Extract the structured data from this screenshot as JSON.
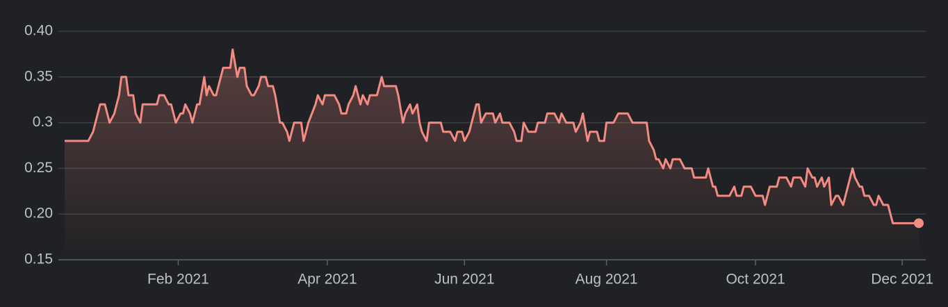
{
  "chart_data": {
    "type": "line",
    "x": [
      0,
      10,
      12,
      14,
      15,
      17,
      19,
      21,
      23,
      24,
      26,
      27,
      29,
      30,
      32,
      33,
      35,
      39,
      40,
      42,
      44,
      45,
      47,
      49,
      50,
      51,
      53,
      54,
      56,
      57,
      59,
      60,
      61,
      63,
      64,
      66,
      67,
      70,
      71,
      73,
      74,
      76,
      77,
      79,
      80,
      82,
      83,
      85,
      86,
      88,
      89,
      91,
      92,
      94,
      95,
      97,
      100,
      101,
      103,
      106,
      107,
      109,
      110,
      114,
      116,
      117,
      119,
      120,
      122,
      123,
      125,
      126,
      128,
      129,
      132,
      134,
      135,
      140,
      141,
      143,
      144,
      146,
      147,
      149,
      150,
      151,
      153,
      154,
      159,
      160,
      163,
      165,
      166,
      168,
      169,
      171,
      172,
      174,
      175,
      176,
      178,
      181,
      182,
      184,
      185,
      188,
      190,
      191,
      193,
      194,
      196,
      199,
      200,
      203,
      204,
      207,
      209,
      210,
      212,
      215,
      216,
      218,
      219,
      221,
      222,
      225,
      226,
      228,
      229,
      232,
      234,
      238,
      240,
      246,
      247,
      249,
      250,
      251,
      253,
      254,
      256,
      257,
      260,
      262,
      265,
      266,
      271,
      272,
      274,
      275,
      276,
      281,
      283,
      284,
      286,
      287,
      290,
      292,
      295,
      296,
      298,
      301,
      302,
      305,
      307,
      308,
      311,
      313,
      314,
      316,
      317,
      318,
      320,
      321,
      323,
      324,
      326,
      327,
      329,
      330,
      331,
      333,
      334,
      336,
      337,
      338,
      340,
      342,
      343,
      344,
      346,
      348,
      350,
      361
    ],
    "series": [
      {
        "color": "#f28b82",
        "values": [
          0.28,
          0.28,
          0.29,
          0.31,
          0.32,
          0.32,
          0.3,
          0.31,
          0.33,
          0.35,
          0.35,
          0.33,
          0.33,
          0.31,
          0.3,
          0.32,
          0.32,
          0.32,
          0.33,
          0.33,
          0.32,
          0.32,
          0.3,
          0.31,
          0.31,
          0.32,
          0.31,
          0.3,
          0.32,
          0.32,
          0.35,
          0.33,
          0.34,
          0.33,
          0.33,
          0.35,
          0.36,
          0.36,
          0.38,
          0.35,
          0.36,
          0.36,
          0.34,
          0.33,
          0.33,
          0.34,
          0.35,
          0.35,
          0.34,
          0.34,
          0.33,
          0.3,
          0.3,
          0.29,
          0.28,
          0.3,
          0.3,
          0.28,
          0.3,
          0.32,
          0.33,
          0.32,
          0.33,
          0.33,
          0.32,
          0.31,
          0.31,
          0.32,
          0.33,
          0.34,
          0.32,
          0.33,
          0.32,
          0.33,
          0.33,
          0.35,
          0.34,
          0.34,
          0.33,
          0.3,
          0.31,
          0.32,
          0.31,
          0.32,
          0.3,
          0.29,
          0.28,
          0.3,
          0.3,
          0.29,
          0.29,
          0.28,
          0.29,
          0.29,
          0.28,
          0.29,
          0.3,
          0.32,
          0.32,
          0.3,
          0.31,
          0.31,
          0.3,
          0.31,
          0.3,
          0.3,
          0.29,
          0.28,
          0.28,
          0.3,
          0.29,
          0.29,
          0.3,
          0.3,
          0.31,
          0.31,
          0.3,
          0.31,
          0.3,
          0.3,
          0.29,
          0.3,
          0.31,
          0.28,
          0.29,
          0.29,
          0.28,
          0.28,
          0.3,
          0.3,
          0.31,
          0.31,
          0.3,
          0.3,
          0.28,
          0.27,
          0.26,
          0.26,
          0.25,
          0.26,
          0.25,
          0.26,
          0.26,
          0.25,
          0.25,
          0.24,
          0.24,
          0.25,
          0.23,
          0.23,
          0.22,
          0.22,
          0.23,
          0.22,
          0.22,
          0.23,
          0.23,
          0.22,
          0.22,
          0.21,
          0.23,
          0.23,
          0.24,
          0.24,
          0.23,
          0.24,
          0.24,
          0.23,
          0.25,
          0.24,
          0.24,
          0.23,
          0.24,
          0.23,
          0.24,
          0.21,
          0.22,
          0.22,
          0.21,
          0.22,
          0.23,
          0.25,
          0.24,
          0.23,
          0.23,
          0.22,
          0.22,
          0.21,
          0.21,
          0.22,
          0.21,
          0.21,
          0.19,
          0.19
        ]
      }
    ],
    "xlim": [
      0,
      361
    ],
    "xticks": [
      {
        "value": 48,
        "label": "Feb 2021"
      },
      {
        "value": 111,
        "label": "Apr 2021"
      },
      {
        "value": 169,
        "label": "Jun 2021"
      },
      {
        "value": 229,
        "label": "Aug 2021"
      },
      {
        "value": 292,
        "label": "Oct 2021"
      },
      {
        "value": 354,
        "label": "Dec 2021"
      }
    ],
    "ylim": [
      0.15,
      0.4
    ],
    "yticks": [
      0.15,
      {
        "value": 0.2,
        "label": "0.20"
      },
      0.25,
      0.3,
      0.35,
      {
        "value": 0.4,
        "label": "0.40"
      }
    ],
    "grid": true
  }
}
